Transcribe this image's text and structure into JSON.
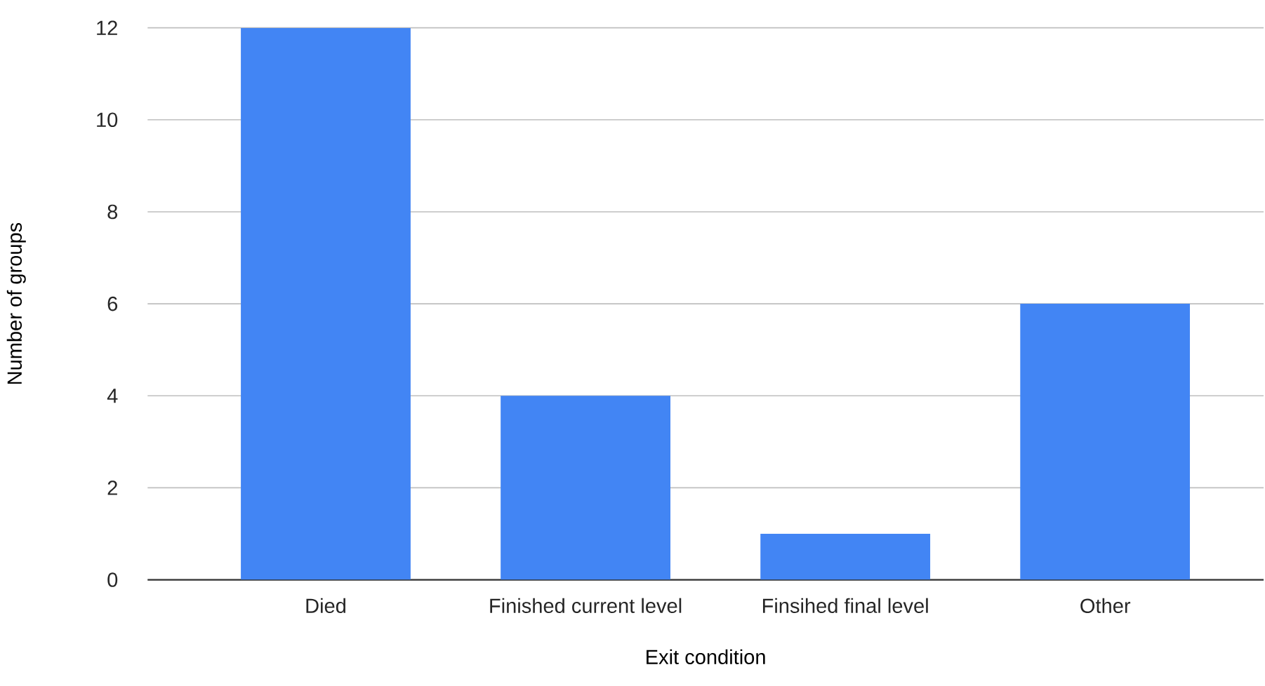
{
  "chart_data": {
    "type": "bar",
    "xlabel": "Exit condition",
    "ylabel": "Number of groups",
    "categories": [
      "Died",
      "Finished current level",
      "Finsihed final level",
      "Other"
    ],
    "values": [
      12,
      4,
      1,
      6
    ],
    "color": "#4285f4",
    "ylim": [
      0,
      12
    ],
    "yticks": [
      0,
      2,
      4,
      6,
      8,
      10,
      12
    ],
    "grid": "y"
  }
}
